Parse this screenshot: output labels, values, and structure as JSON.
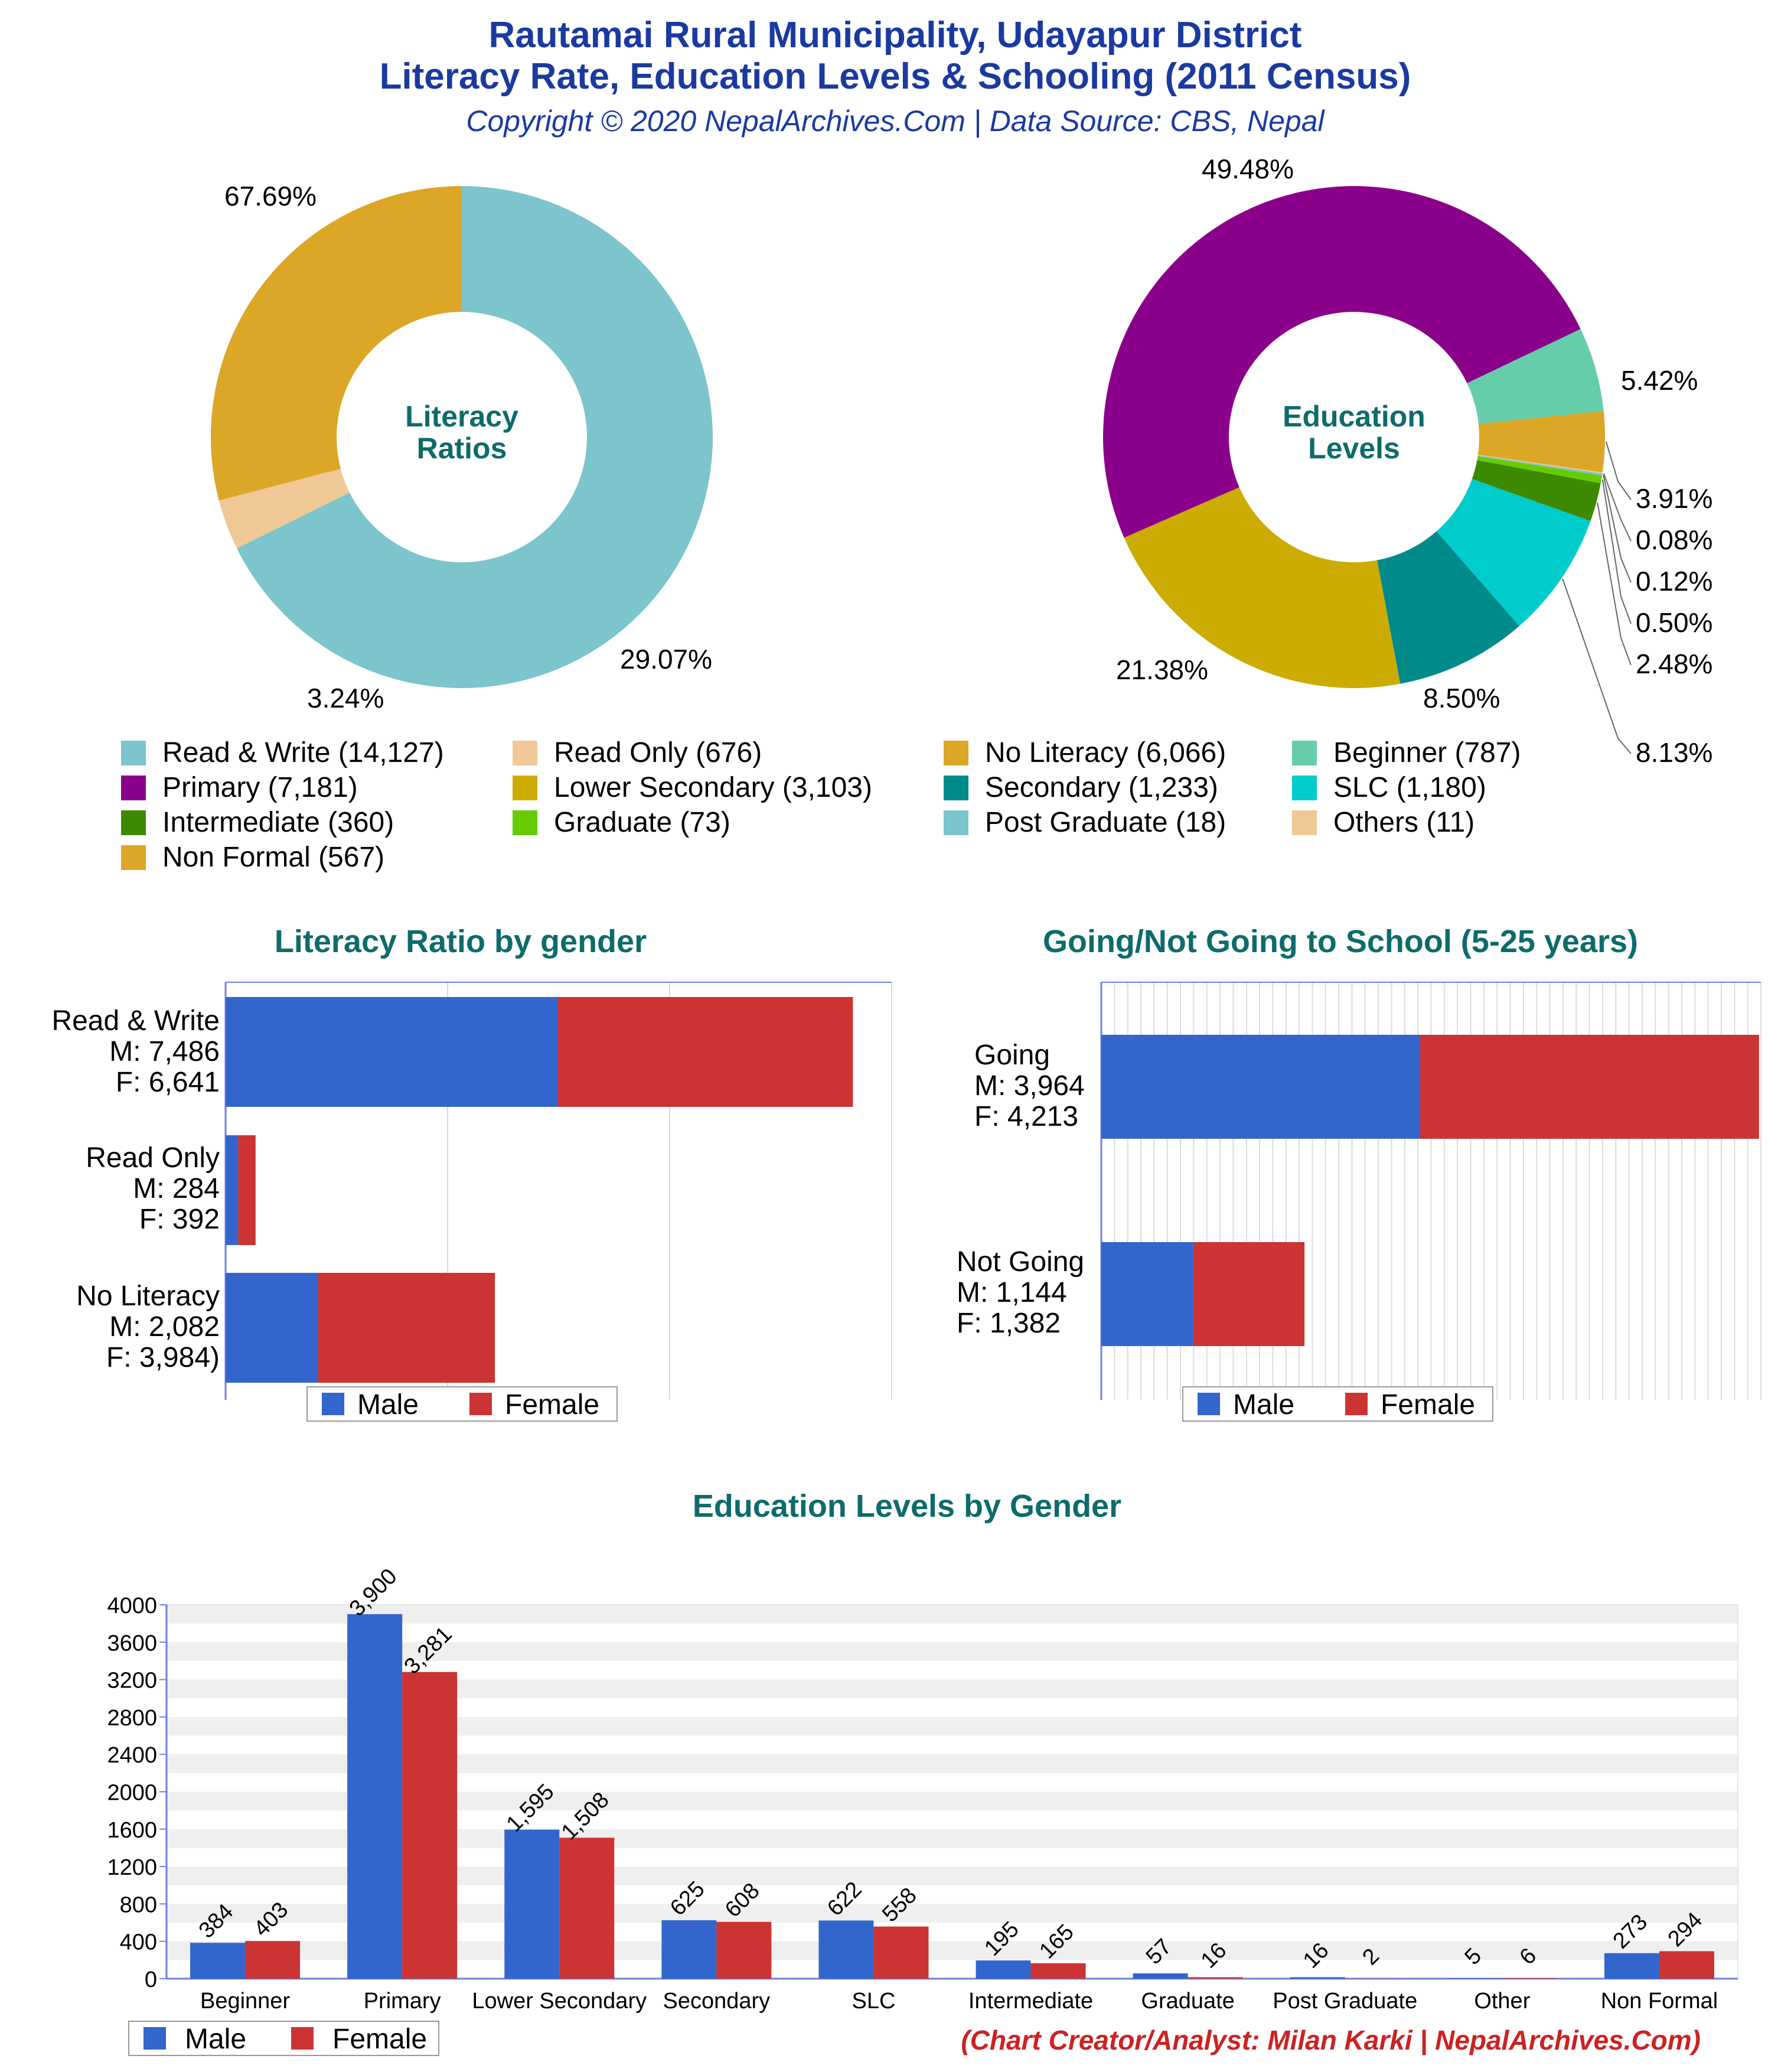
{
  "header": {
    "title_line1": "Rautamai Rural Municipality, Udayapur District",
    "title_line2": "Literacy Rate, Education Levels & Schooling (2011 Census)",
    "copyright": "Copyright © 2020 NepalArchives.Com | Data Source: CBS, Nepal"
  },
  "colors": {
    "title": "#1a3aa0",
    "section_title": "#0d6b6b",
    "male": "#3366cc",
    "female": "#cc3333",
    "credit": "#cc2222"
  },
  "chart_data": [
    {
      "type": "pie",
      "center_label": [
        "Literacy",
        "Ratios"
      ],
      "slices": [
        {
          "label": "Read & Write (14,127)",
          "value": 14127,
          "pct_label": "67.69%",
          "color": "#7cc5cc"
        },
        {
          "label": "Read Only (676)",
          "value": 676,
          "pct_label": "3.24%",
          "color": "#f0c896"
        },
        {
          "label": "No Literacy (6,066)",
          "value": 6066,
          "pct_label": "29.07%",
          "color": "#dca626"
        }
      ]
    },
    {
      "type": "pie",
      "center_label": [
        "Education",
        "Levels"
      ],
      "slices": [
        {
          "label": "Beginner (787)",
          "value": 787,
          "pct_label": "5.42%",
          "color": "#66cdaa"
        },
        {
          "label": "Non Formal (567)",
          "value": 567,
          "pct_label": "3.91%",
          "color": "#dca626"
        },
        {
          "label": "Others (11)",
          "value": 11,
          "pct_label": "0.08%",
          "color": "#f0c896"
        },
        {
          "label": "Post Graduate (18)",
          "value": 18,
          "pct_label": "0.12%",
          "color": "#7cc5cc"
        },
        {
          "label": "Graduate (73)",
          "value": 73,
          "pct_label": "0.50%",
          "color": "#66cc00"
        },
        {
          "label": "Intermediate (360)",
          "value": 360,
          "pct_label": "2.48%",
          "color": "#3d8a00"
        },
        {
          "label": "SLC (1,180)",
          "value": 1180,
          "pct_label": "8.13%",
          "color": "#00cccc"
        },
        {
          "label": "Secondary (1,233)",
          "value": 1233,
          "pct_label": "8.50%",
          "color": "#008b8b"
        },
        {
          "label": "Lower Secondary (3,103)",
          "value": 3103,
          "pct_label": "21.38%",
          "color": "#ccac00"
        },
        {
          "label": "Primary (7,181)",
          "value": 7181,
          "pct_label": "49.48%",
          "color": "#8b008b"
        }
      ]
    },
    {
      "type": "bar",
      "orientation": "horizontal",
      "stacked": true,
      "title": "Literacy Ratio by gender",
      "categories": [
        [
          "Read & Write",
          "M: 7,486",
          "F: 6,641"
        ],
        [
          "Read Only",
          "M: 284",
          "F: 392"
        ],
        [
          "No Literacy",
          "M: 2,082",
          "F: 3,984)"
        ]
      ],
      "series": [
        {
          "name": "Male",
          "values": [
            7486,
            284,
            2082
          ]
        },
        {
          "name": "Female",
          "values": [
            6641,
            392,
            3984
          ]
        }
      ],
      "xlim": [
        0,
        15000
      ],
      "legend": "bottom"
    },
    {
      "type": "bar",
      "orientation": "horizontal",
      "stacked": true,
      "title": "Going/Not Going to School (5-25 years)",
      "categories": [
        [
          "Going",
          "M: 3,964",
          "F: 4,213"
        ],
        [
          "Not Going",
          "M: 1,144",
          "F: 1,382"
        ]
      ],
      "series": [
        {
          "name": "Male",
          "values": [
            3964,
            1144
          ]
        },
        {
          "name": "Female",
          "values": [
            4213,
            1382
          ]
        }
      ],
      "xlim": [
        0,
        8200
      ],
      "legend": "bottom"
    },
    {
      "type": "bar",
      "orientation": "vertical",
      "title": "Education Levels by Gender",
      "categories": [
        "Beginner",
        "Primary",
        "Lower Secondary",
        "Secondary",
        "SLC",
        "Intermediate",
        "Graduate",
        "Post Graduate",
        "Other",
        "Non Formal"
      ],
      "series": [
        {
          "name": "Male",
          "values": [
            384,
            3900,
            1595,
            625,
            622,
            195,
            57,
            16,
            5,
            273
          ],
          "labels": [
            "384",
            "3,900",
            "1,595",
            "625",
            "622",
            "195",
            "57",
            "16",
            "5",
            "273"
          ]
        },
        {
          "name": "Female",
          "values": [
            403,
            3281,
            1508,
            608,
            558,
            165,
            16,
            2,
            6,
            294
          ],
          "labels": [
            "403",
            "3,281",
            "1,508",
            "608",
            "558",
            "165",
            "16",
            "2",
            "6",
            "294"
          ]
        }
      ],
      "ylim": [
        0,
        4000
      ],
      "yticks": [
        "0",
        "400",
        "800",
        "1200",
        "1600",
        "2000",
        "2400",
        "2800",
        "3200",
        "3600",
        "4000"
      ],
      "legend": "bottom-left"
    }
  ],
  "footer": {
    "credit": "(Chart Creator/Analyst: Milan Karki | NepalArchives.Com)"
  }
}
